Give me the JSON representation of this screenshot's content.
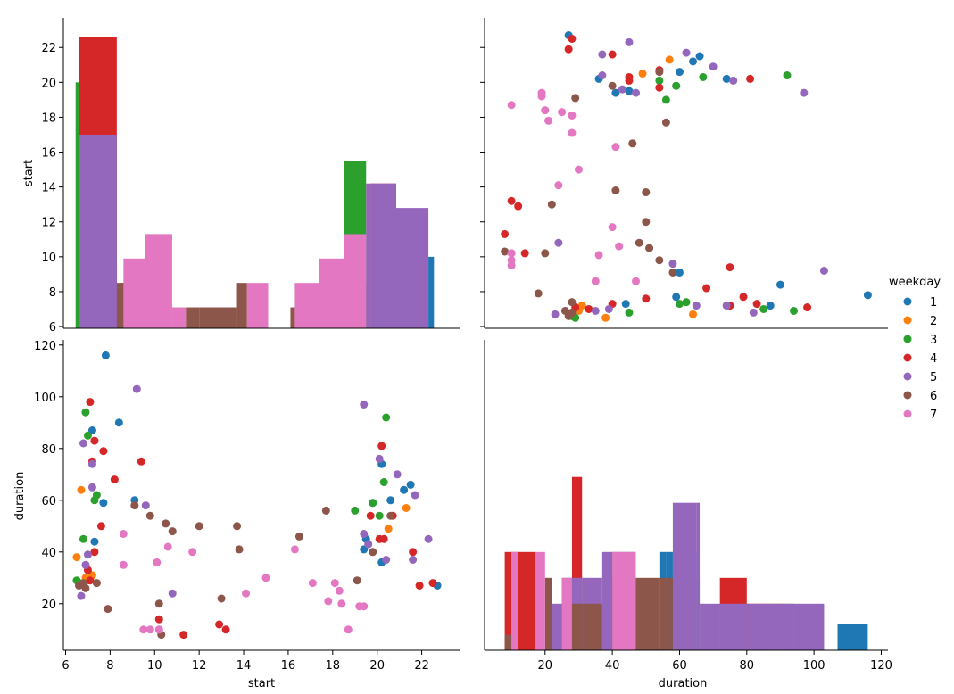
{
  "chart_data": {
    "type": "pairplot",
    "variables": [
      "start",
      "duration"
    ],
    "hue": "weekday",
    "legend": {
      "title": "weekday",
      "placement": "right",
      "entries": [
        {
          "label": "1",
          "color": "#1f77b4"
        },
        {
          "label": "2",
          "color": "#ff7f0e"
        },
        {
          "label": "3",
          "color": "#2ca02c"
        },
        {
          "label": "4",
          "color": "#d62728"
        },
        {
          "label": "5",
          "color": "#9467bd"
        },
        {
          "label": "6",
          "color": "#8c564b"
        },
        {
          "label": "7",
          "color": "#e377c2"
        }
      ]
    },
    "axes": {
      "start": {
        "label": "start",
        "lim": [
          5.9,
          23.7
        ],
        "ticks": [
          "6",
          "8",
          "10",
          "12",
          "14",
          "16",
          "18",
          "20",
          "22"
        ],
        "ticks_y": [
          "6",
          "8",
          "10",
          "12",
          "14",
          "16",
          "18",
          "20",
          "22"
        ]
      },
      "duration": {
        "label": "duration",
        "lim": [
          2,
          122
        ],
        "ticks": [
          "20",
          "40",
          "60",
          "80",
          "100",
          "120"
        ],
        "ticks_y": [
          "20",
          "40",
          "60",
          "80",
          "100",
          "120"
        ]
      }
    },
    "hist_start": {
      "bins": [
        [
          6.45,
          6.62
        ],
        [
          6.62,
          8.3
        ],
        [
          8.3,
          8.45
        ],
        [
          8.45,
          8.6
        ],
        [
          8.6,
          9.55
        ],
        [
          9.55,
          10.78
        ],
        [
          10.78,
          11.4
        ],
        [
          11.4,
          12.0
        ],
        [
          12.0,
          13.7
        ],
        [
          13.7,
          14.15
        ],
        [
          14.15,
          15.1
        ],
        [
          16.1,
          16.3
        ],
        [
          16.3,
          17.4
        ],
        [
          17.4,
          18.5
        ],
        [
          18.5,
          19.5
        ],
        [
          19.5,
          19.7
        ],
        [
          19.7,
          20.85
        ],
        [
          20.85,
          22.3
        ],
        [
          22.3,
          22.55
        ]
      ],
      "series": [
        {
          "name": "1",
          "values": [
            0,
            17,
            0,
            0,
            0,
            0,
            0,
            0,
            0,
            0,
            0,
            0,
            0,
            0,
            0,
            0,
            0,
            0,
            10
          ]
        },
        {
          "name": "3",
          "values": [
            20,
            0,
            0,
            0,
            0,
            0,
            0,
            0,
            0,
            0,
            0,
            0,
            0,
            0,
            15.5,
            0,
            0,
            0,
            0
          ]
        },
        {
          "name": "4",
          "values": [
            0,
            22.6,
            0,
            8.5,
            0,
            0,
            0,
            0,
            0,
            0,
            0,
            0,
            0,
            0,
            0,
            0,
            14.2,
            0,
            0
          ]
        },
        {
          "name": "6",
          "values": [
            0,
            0,
            8.5,
            8.5,
            8.5,
            11.3,
            0,
            7.1,
            7.1,
            8.5,
            0,
            7.1,
            7.1,
            7.1,
            8.5,
            0,
            0,
            0,
            0
          ]
        },
        {
          "name": "5",
          "values": [
            0,
            17,
            0,
            0,
            0,
            0,
            0,
            0,
            0,
            0,
            0,
            0,
            0,
            0,
            0,
            14.2,
            14.2,
            12.8,
            0
          ]
        },
        {
          "name": "7",
          "values": [
            0,
            0,
            0,
            0,
            9.9,
            11.3,
            7.1,
            0,
            0,
            0,
            8.5,
            0,
            8.5,
            9.9,
            11.3,
            0,
            0,
            0,
            0
          ]
        }
      ]
    },
    "hist_duration": {
      "bins": [
        [
          8,
          10
        ],
        [
          10,
          12
        ],
        [
          12,
          17
        ],
        [
          17,
          20
        ],
        [
          20,
          22
        ],
        [
          22,
          25
        ],
        [
          25,
          28
        ],
        [
          28,
          31
        ],
        [
          31,
          37
        ],
        [
          37,
          40
        ],
        [
          40,
          47
        ],
        [
          47,
          54
        ],
        [
          54,
          56
        ],
        [
          56,
          58
        ],
        [
          58,
          65
        ],
        [
          65,
          66
        ],
        [
          66,
          72
        ],
        [
          72,
          80
        ],
        [
          80,
          85
        ],
        [
          85,
          90
        ],
        [
          90,
          94
        ],
        [
          94,
          103
        ],
        [
          103,
          107
        ],
        [
          107,
          116
        ]
      ],
      "series": [
        {
          "name": "1",
          "values": [
            0,
            0,
            0,
            0,
            0,
            0,
            0,
            0,
            0,
            0,
            0,
            0,
            40,
            40,
            40,
            0,
            0,
            0,
            0,
            0,
            0,
            0,
            0,
            12
          ]
        },
        {
          "name": "3",
          "values": [
            0,
            0,
            0,
            0,
            0,
            0,
            0,
            0,
            0,
            0,
            0,
            0,
            0,
            0,
            0,
            30,
            0,
            0,
            0,
            0,
            20,
            0,
            0,
            0
          ]
        },
        {
          "name": "4",
          "values": [
            40,
            40,
            40,
            0,
            0,
            0,
            0,
            69,
            0,
            0,
            0,
            0,
            0,
            0,
            0,
            0,
            0,
            30,
            20,
            20,
            0,
            0,
            0,
            0
          ]
        },
        {
          "name": "5",
          "values": [
            0,
            0,
            0,
            0,
            0,
            20,
            30,
            30,
            30,
            40,
            40,
            0,
            0,
            0,
            59,
            59,
            20,
            20,
            20,
            20,
            20,
            20,
            0,
            0
          ]
        },
        {
          "name": "6",
          "values": [
            8,
            0,
            0,
            0,
            30,
            0,
            20,
            20,
            20,
            0,
            30,
            30,
            30,
            30,
            0,
            0,
            0,
            0,
            0,
            0,
            0,
            0,
            0,
            0
          ]
        },
        {
          "name": "7",
          "values": [
            0,
            40,
            0,
            40,
            0,
            0,
            30,
            0,
            0,
            0,
            40,
            0,
            0,
            0,
            0,
            0,
            0,
            0,
            0,
            0,
            0,
            0,
            0,
            0
          ]
        }
      ]
    },
    "scatter_points": [
      {
        "weekday": "1",
        "start": [
          22.7,
          21.5,
          20.2,
          20.6,
          19.4,
          7.8,
          7.2,
          7.3,
          8.4,
          9.1,
          7.7,
          19.8,
          19.5,
          20.2,
          21.2
        ],
        "duration": [
          27,
          66,
          74,
          60,
          41,
          116,
          87,
          44,
          90,
          60,
          59,
          59,
          45,
          36,
          64
        ]
      },
      {
        "weekday": "2",
        "start": [
          6.5,
          6.7,
          21.3,
          20.5,
          7.0,
          7.2,
          6.9
        ],
        "duration": [
          38,
          64,
          57,
          49,
          29,
          31,
          30
        ]
      },
      {
        "weekday": "3",
        "start": [
          6.5,
          6.9,
          7.0,
          7.3,
          7.4,
          20.4,
          20.3,
          19.8,
          20.1,
          19.0,
          6.6,
          6.8
        ],
        "duration": [
          29,
          94,
          85,
          60,
          62,
          92,
          67,
          59,
          54,
          56,
          28,
          45
        ]
      },
      {
        "weekday": "4",
        "start": [
          7.1,
          7.2,
          7.3,
          7.6,
          7.7,
          8.2,
          9.4,
          11.3,
          10.2,
          13.2,
          12.9,
          20.2,
          20.3,
          20.7,
          21.6,
          21.9,
          22.5,
          19.7,
          20.1,
          7.1,
          7.3,
          7.0
        ],
        "duration": [
          98,
          75,
          40,
          50,
          79,
          68,
          75,
          8,
          14,
          10,
          12,
          81,
          45,
          54,
          40,
          27,
          28,
          54,
          45,
          29,
          83,
          33
        ]
      },
      {
        "weekday": "5",
        "start": [
          6.8,
          6.7,
          7.0,
          7.2,
          9.2,
          9.6,
          10.8,
          19.4,
          20.1,
          20.4,
          20.9,
          21.7,
          21.6,
          22.3,
          19.6,
          19.4,
          7.2,
          6.9
        ],
        "duration": [
          82,
          23,
          39,
          74,
          103,
          58,
          24,
          97,
          76,
          37,
          70,
          62,
          37,
          45,
          43,
          47,
          65,
          35
        ]
      },
      {
        "weekday": "6",
        "start": [
          6.6,
          6.9,
          7.4,
          7.9,
          9.1,
          9.8,
          10.5,
          10.8,
          10.2,
          12.0,
          13.0,
          13.7,
          13.8,
          16.5,
          17.7,
          19.1,
          19.8,
          20.6,
          6.8,
          10.3
        ],
        "duration": [
          27,
          26,
          28,
          18,
          58,
          54,
          51,
          48,
          20,
          50,
          22,
          50,
          41,
          46,
          56,
          29,
          40,
          54,
          28,
          8
        ]
      },
      {
        "weekday": "7",
        "start": [
          8.6,
          8.6,
          9.5,
          9.8,
          10.1,
          10.2,
          10.6,
          11.7,
          14.1,
          15.0,
          16.3,
          17.1,
          17.8,
          18.1,
          18.3,
          18.7,
          19.2,
          19.4,
          18.4,
          10.2
        ],
        "duration": [
          47,
          35,
          10,
          10,
          36,
          10,
          42,
          40,
          24,
          30,
          41,
          28,
          21,
          28,
          25,
          10,
          19,
          19,
          20,
          10
        ]
      }
    ]
  }
}
